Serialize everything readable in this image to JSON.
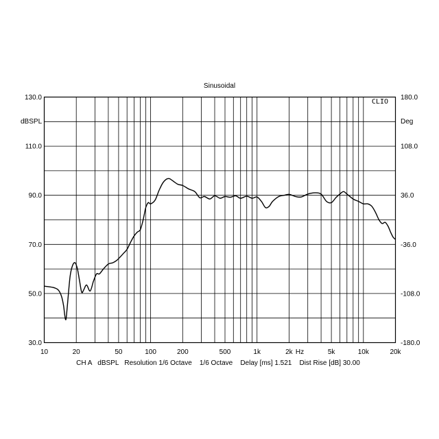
{
  "chart_data": {
    "type": "line",
    "title": "Sinusoidal",
    "brand": "CLIO",
    "ylabel_left": "dBSPL",
    "ylabel_right": "Deg",
    "xlabel": "Hz",
    "footer": "CH A   dBSPL   Resolution 1/6 Octave    1/6 Octave    Delay [ms] 1.521    Dist Rise [dB] 30.00",
    "x_scale": "log",
    "xlim": [
      10,
      20000
    ],
    "ylim": [
      30,
      130
    ],
    "ylim_right": [
      -180,
      180
    ],
    "grid": true,
    "x_ticks": [
      {
        "value": 10,
        "label": "10"
      },
      {
        "value": 20,
        "label": "20"
      },
      {
        "value": 50,
        "label": "50"
      },
      {
        "value": 100,
        "label": "100"
      },
      {
        "value": 200,
        "label": "200"
      },
      {
        "value": 500,
        "label": "500"
      },
      {
        "value": 1000,
        "label": "1k"
      },
      {
        "value": 2000,
        "label": "2k"
      },
      {
        "value": 5000,
        "label": "5k"
      },
      {
        "value": 10000,
        "label": "10k"
      },
      {
        "value": 20000,
        "label": "20k"
      }
    ],
    "y_ticks": [
      {
        "value": 130,
        "label": "130.0"
      },
      {
        "value": 110,
        "label": "110.0"
      },
      {
        "value": 90,
        "label": "90.0"
      },
      {
        "value": 70,
        "label": "70.0"
      },
      {
        "value": 50,
        "label": "50.0"
      },
      {
        "value": 30,
        "label": "30.0"
      }
    ],
    "y_ticks_right": [
      {
        "value": 180,
        "label": "180.0"
      },
      {
        "value": 108,
        "label": "108.0"
      },
      {
        "value": 36,
        "label": "36.0"
      },
      {
        "value": -36,
        "label": "-36.0"
      },
      {
        "value": -108,
        "label": "-108.0"
      },
      {
        "value": -180,
        "label": "-180.0"
      }
    ],
    "series": [
      {
        "color": "#000000",
        "x": [
          10,
          12,
          13.5,
          14.5,
          15.2,
          15.6,
          16,
          16.5,
          17.5,
          18.5,
          19.5,
          20.5,
          21.5,
          22.5,
          23.5,
          25,
          27,
          29,
          31,
          33,
          36,
          40,
          44,
          48,
          52,
          56,
          60,
          65,
          70,
          75,
          80,
          85,
          90,
          95,
          100,
          110,
          120,
          130,
          140,
          150,
          160,
          180,
          200,
          230,
          260,
          290,
          320,
          360,
          400,
          450,
          500,
          560,
          630,
          700,
          800,
          900,
          1000,
          1100,
          1200,
          1300,
          1400,
          1600,
          1800,
          2000,
          2300,
          2600,
          3000,
          3500,
          4000,
          4500,
          5000,
          5500,
          6000,
          6500,
          7000,
          8000,
          9000,
          10000,
          11000,
          12000,
          13000,
          14000,
          15000,
          16000,
          17000,
          18000,
          19000,
          20000
        ],
        "values": [
          53,
          52.5,
          51.5,
          49,
          45,
          41,
          39.5,
          45,
          57,
          61.5,
          62.5,
          60,
          55,
          50.5,
          51.5,
          53.5,
          51,
          55,
          58,
          58,
          60,
          62,
          62.5,
          63.5,
          65,
          66.5,
          68,
          71,
          73.5,
          75,
          76,
          80,
          85,
          87,
          86.5,
          88,
          92,
          95,
          96.5,
          96.8,
          96,
          94.5,
          94,
          92.5,
          91.5,
          89,
          89.5,
          88.5,
          89.8,
          88.8,
          89.5,
          89.2,
          89.8,
          88.8,
          89.6,
          88.8,
          89.3,
          87.5,
          85,
          85.5,
          87.5,
          89.5,
          90,
          90.4,
          89.5,
          89.3,
          90.5,
          91,
          90.5,
          87.5,
          87,
          89,
          90.5,
          91.5,
          90.5,
          88.5,
          87.5,
          86.5,
          86.5,
          85.5,
          83,
          80,
          78.5,
          79,
          77.5,
          75,
          73,
          72
        ]
      }
    ]
  }
}
